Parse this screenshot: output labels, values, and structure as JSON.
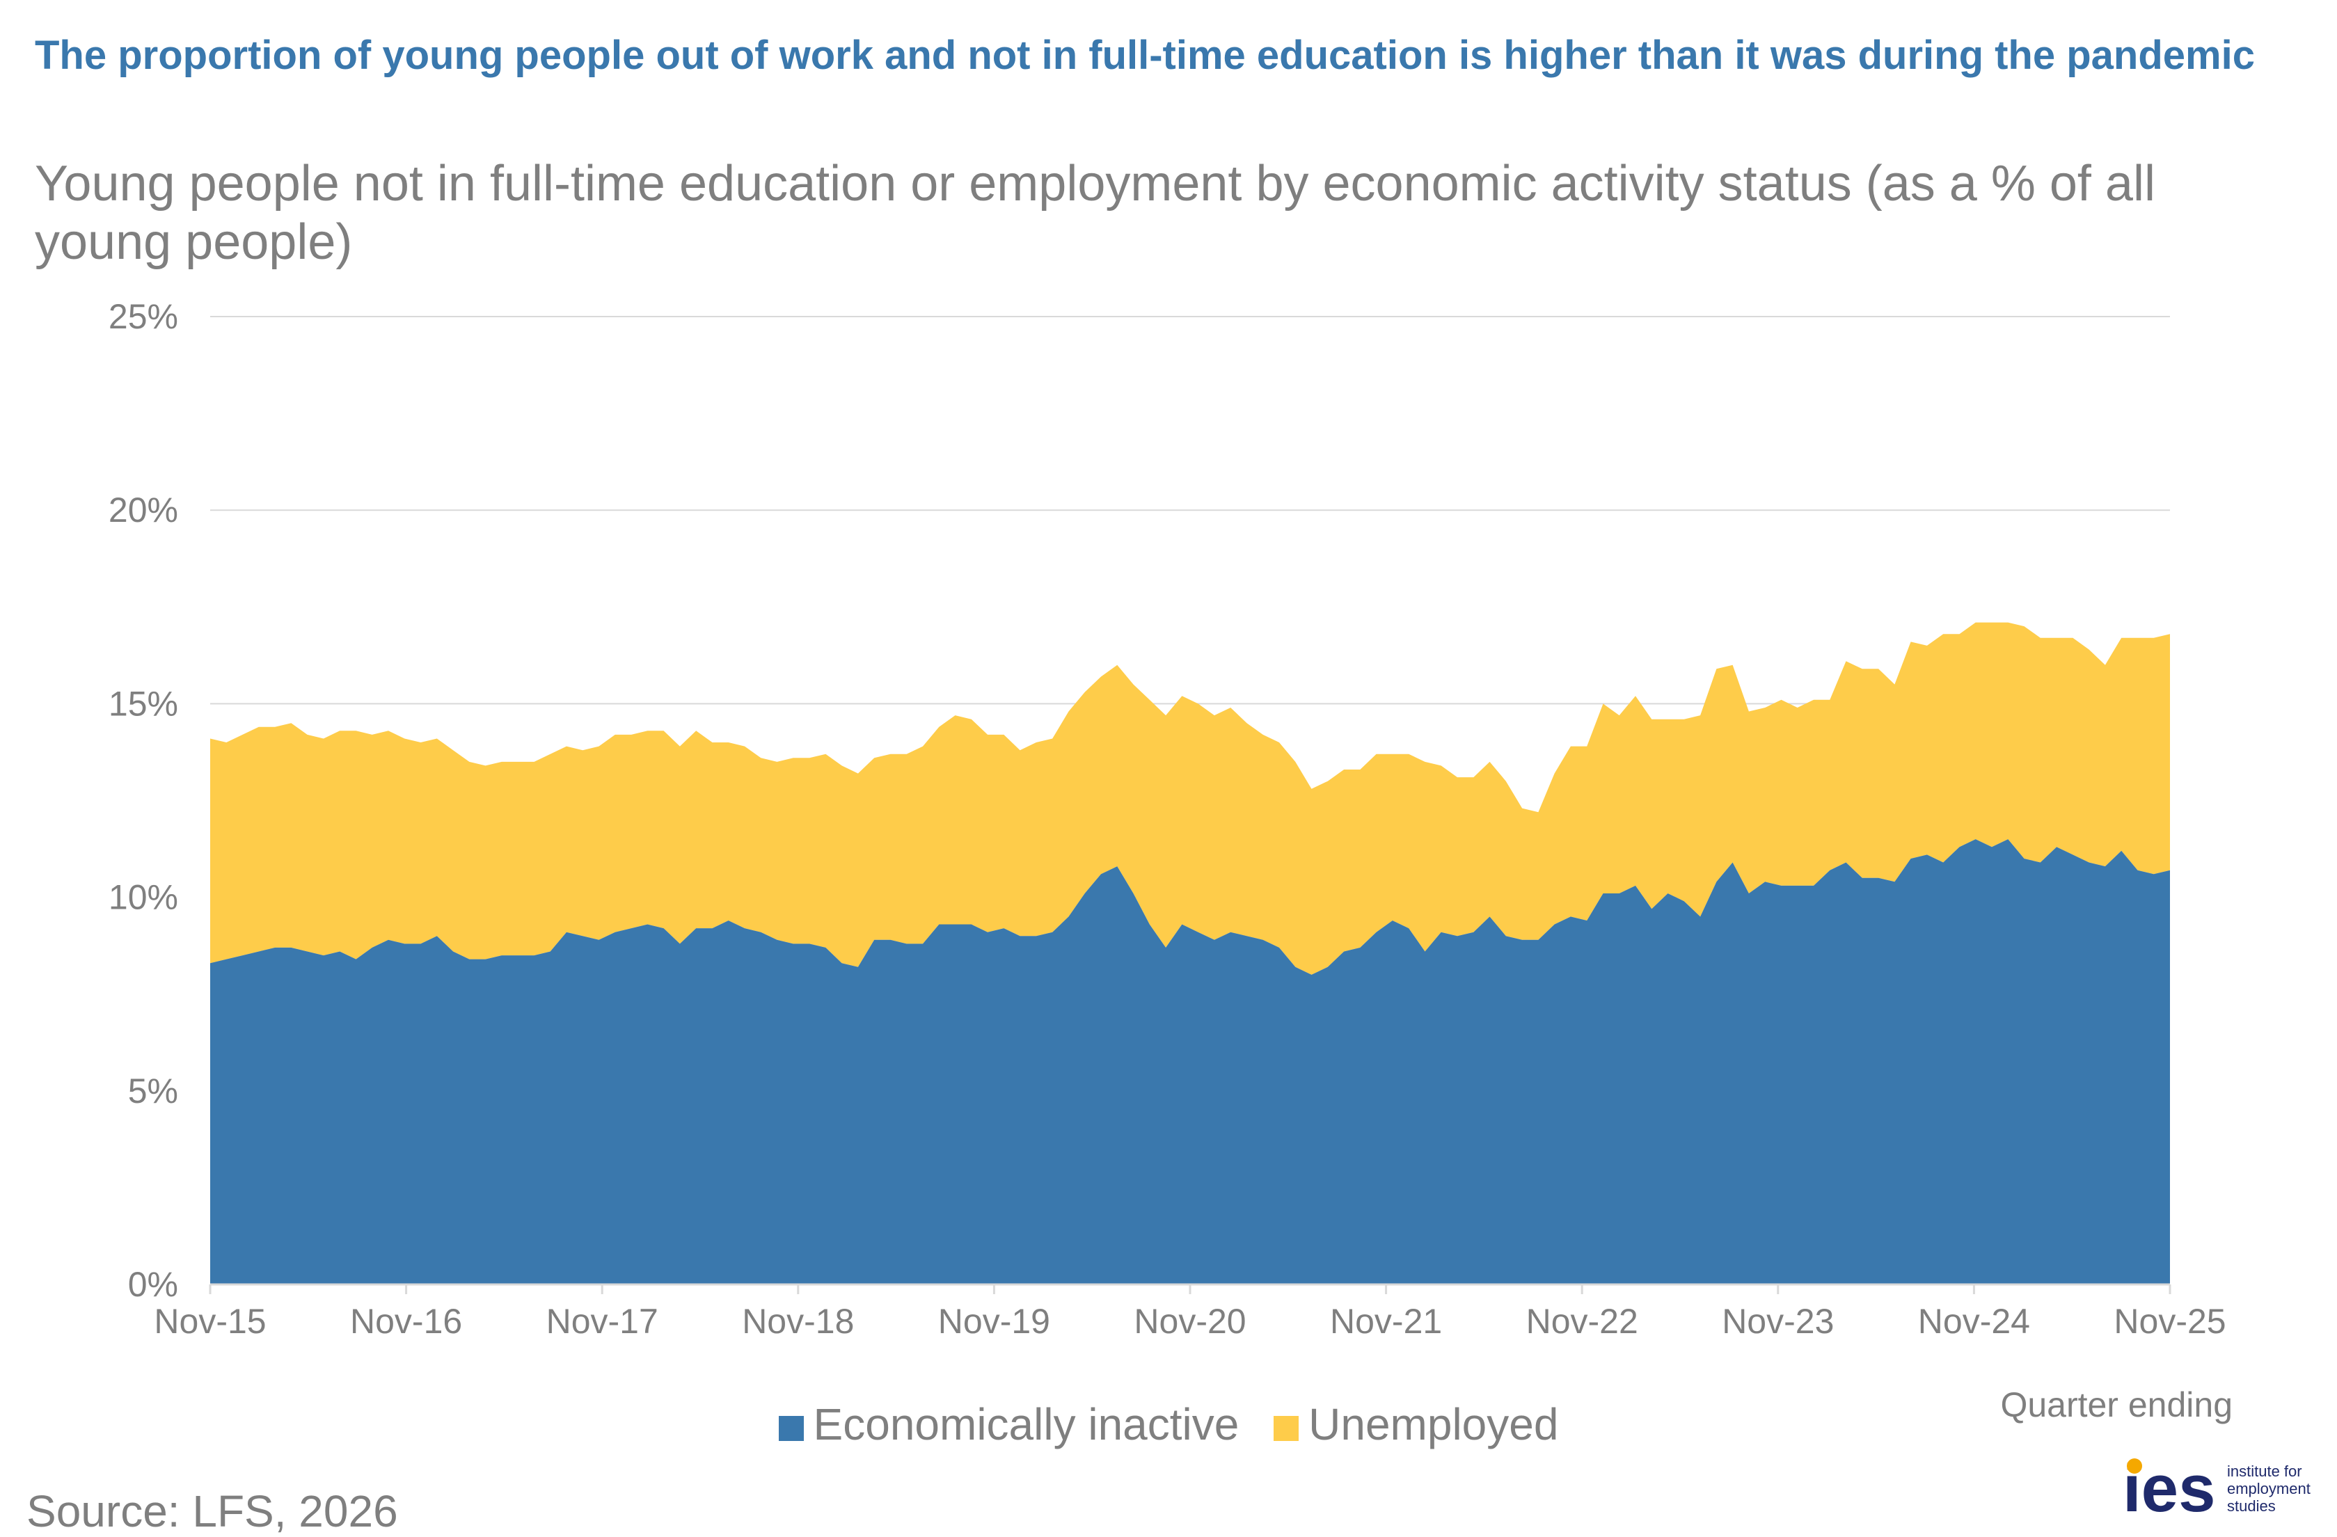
{
  "title": "The proportion of young people out of work and not in full-time education is higher than it was during the pandemic",
  "subtitle": "Young people not in full-time education or employment by economic activity status (as a % of all young people)",
  "source": "Source: LFS, 2026",
  "logo": {
    "mark": "ies",
    "text": "institute for\nemployment\nstudies"
  },
  "colors": {
    "inactive": "#3a78ad",
    "unemployed": "#fecc4a",
    "grid": "#d9d9d9",
    "text": "#7f7f7f",
    "title": "#3a78ad"
  },
  "chart_data": {
    "type": "area",
    "stacked": true,
    "xlabel": "Quarter ending",
    "ylabel": "",
    "ylim": [
      0,
      25
    ],
    "y_ticks": [
      "0%",
      "5%",
      "10%",
      "15%",
      "20%",
      "25%"
    ],
    "x_tick_labels": [
      "Nov-15",
      "Nov-16",
      "Nov-17",
      "Nov-18",
      "Nov-19",
      "Nov-20",
      "Nov-21",
      "Nov-22",
      "Nov-23",
      "Nov-24",
      "Nov-25"
    ],
    "grid": true,
    "legend_position": "bottom",
    "series": [
      {
        "name": "Economically inactive",
        "values": [
          8.3,
          8.4,
          8.5,
          8.6,
          8.7,
          8.7,
          8.6,
          8.5,
          8.6,
          8.4,
          8.7,
          8.9,
          8.8,
          8.8,
          9.0,
          8.6,
          8.4,
          8.4,
          8.5,
          8.5,
          8.5,
          8.6,
          9.1,
          9.0,
          8.9,
          9.1,
          9.2,
          9.3,
          9.2,
          8.8,
          9.2,
          9.2,
          9.4,
          9.2,
          9.1,
          8.9,
          8.8,
          8.8,
          8.7,
          8.3,
          8.2,
          8.9,
          8.9,
          8.8,
          8.8,
          9.3,
          9.3,
          9.3,
          9.1,
          9.2,
          9.0,
          9.0,
          9.1,
          9.5,
          10.1,
          10.6,
          10.8,
          10.1,
          9.3,
          8.7,
          9.3,
          9.1,
          8.9,
          9.1,
          9.0,
          8.9,
          8.7,
          8.2,
          8.0,
          8.2,
          8.6,
          8.7,
          9.1,
          9.4,
          9.2,
          8.6,
          9.1,
          9.0,
          9.1,
          9.5,
          9.0,
          8.9,
          8.9,
          9.3,
          9.5,
          9.4,
          10.1,
          10.1,
          10.3,
          9.7,
          10.1,
          9.9,
          9.5,
          10.4,
          10.9,
          10.1,
          10.4,
          10.3,
          10.3,
          10.3,
          10.7,
          10.9,
          10.5,
          10.5,
          10.4,
          11.0,
          11.1,
          10.9,
          11.3,
          11.5,
          11.3,
          11.5,
          11.0,
          10.9,
          11.3,
          11.1,
          10.9,
          10.8,
          11.2,
          10.7,
          10.6,
          10.7
        ]
      },
      {
        "name": "Unemployed",
        "values": [
          5.8,
          5.6,
          5.7,
          5.8,
          5.7,
          5.8,
          5.6,
          5.6,
          5.7,
          5.9,
          5.5,
          5.4,
          5.3,
          5.2,
          5.1,
          5.2,
          5.1,
          5.0,
          5.0,
          5.0,
          5.0,
          5.1,
          4.8,
          4.8,
          5.0,
          5.1,
          5.0,
          5.0,
          5.1,
          5.1,
          5.1,
          4.8,
          4.6,
          4.7,
          4.5,
          4.6,
          4.8,
          4.8,
          5.0,
          5.1,
          5.0,
          4.7,
          4.8,
          4.9,
          5.1,
          5.1,
          5.4,
          5.3,
          5.1,
          5.0,
          4.8,
          5.0,
          5.0,
          5.3,
          5.2,
          5.1,
          5.2,
          5.4,
          5.8,
          6.0,
          5.9,
          5.9,
          5.8,
          5.8,
          5.5,
          5.3,
          5.3,
          5.3,
          4.8,
          4.8,
          4.7,
          4.6,
          4.6,
          4.3,
          4.5,
          4.9,
          4.3,
          4.1,
          4.0,
          4.0,
          4.0,
          3.4,
          3.3,
          3.9,
          4.4,
          4.5,
          4.9,
          4.6,
          4.9,
          4.9,
          4.5,
          4.7,
          5.2,
          5.5,
          5.1,
          4.7,
          4.5,
          4.8,
          4.6,
          4.8,
          4.4,
          5.2,
          5.4,
          5.4,
          5.1,
          5.6,
          5.4,
          5.9,
          5.5,
          5.6,
          5.8,
          5.6,
          6.0,
          5.8,
          5.4,
          5.6,
          5.5,
          5.2,
          5.5,
          6.0,
          6.1,
          6.1
        ]
      }
    ]
  }
}
